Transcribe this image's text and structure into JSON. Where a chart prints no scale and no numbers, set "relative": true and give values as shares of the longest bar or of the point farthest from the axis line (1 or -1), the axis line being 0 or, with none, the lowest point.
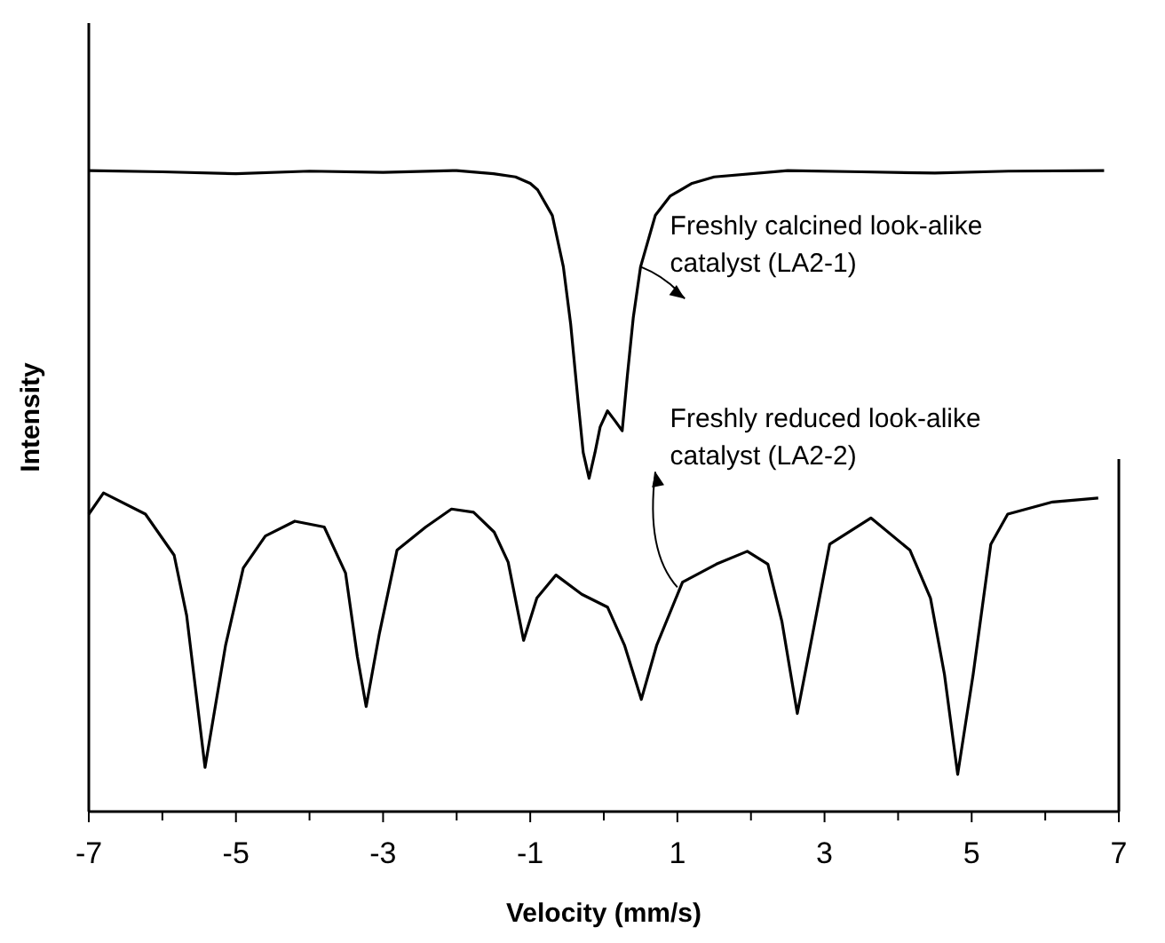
{
  "chart_data": {
    "type": "line",
    "relative": true,
    "xlabel": "Velocity (mm/s)",
    "ylabel": "Intensity",
    "xlim": [
      -7,
      7
    ],
    "xticks": [
      -7,
      -5,
      -3,
      -1,
      1,
      3,
      5,
      7
    ],
    "legend": false,
    "marker": "none",
    "line_style": "solid",
    "grid": false,
    "series": [
      {
        "name": "Freshly calcined look-alike catalyst (LA2-1)",
        "color": "#000000",
        "x": [
          -7,
          -6,
          -5,
          -4,
          -3,
          -2,
          -1.5,
          -1.2,
          -1,
          -0.9,
          -0.7,
          -0.55,
          -0.45,
          -0.35,
          -0.28,
          -0.2,
          -0.12,
          -0.05,
          0.05,
          0.15,
          0.25,
          0.32,
          0.4,
          0.5,
          0.7,
          0.9,
          1.2,
          1.5,
          2.5,
          3.5,
          4.5,
          5.5,
          6.8
        ],
        "values": [
          1,
          0.998,
          0.995,
          0.999,
          0.997,
          1,
          0.995,
          0.99,
          0.98,
          0.97,
          0.93,
          0.85,
          0.76,
          0.64,
          0.56,
          0.52,
          0.56,
          0.6,
          0.625,
          0.61,
          0.594,
          0.68,
          0.77,
          0.85,
          0.93,
          0.96,
          0.98,
          0.99,
          1,
          0.998,
          0.996,
          0.999,
          1
        ]
      },
      {
        "name": "Freshly reduced look-alike catalyst (LA2-2)",
        "color": "#000000",
        "x": [
          -7,
          -6.8,
          -6.23,
          -5.84,
          -5.67,
          -5.42,
          -5.14,
          -4.9,
          -4.6,
          -4.2,
          -3.8,
          -3.51,
          -3.35,
          -3.23,
          -3.05,
          -2.81,
          -2.42,
          -2.07,
          -1.77,
          -1.49,
          -1.3,
          -1.09,
          -0.91,
          -0.65,
          -0.3,
          0.05,
          0.28,
          0.51,
          0.72,
          1.07,
          1.53,
          1.95,
          2.23,
          2.42,
          2.63,
          2.84,
          3.07,
          3.63,
          4.16,
          4.44,
          4.63,
          4.81,
          5.02,
          5.26,
          5.49,
          6.1,
          6.72
        ],
        "values": [
          0.464,
          0.497,
          0.464,
          0.4,
          0.306,
          0.069,
          0.26,
          0.38,
          0.43,
          0.453,
          0.444,
          0.372,
          0.242,
          0.164,
          0.278,
          0.408,
          0.444,
          0.472,
          0.467,
          0.436,
          0.389,
          0.267,
          0.333,
          0.369,
          0.339,
          0.319,
          0.26,
          0.175,
          0.26,
          0.358,
          0.386,
          0.406,
          0.386,
          0.297,
          0.153,
          0.278,
          0.417,
          0.458,
          0.408,
          0.333,
          0.214,
          0.058,
          0.214,
          0.417,
          0.464,
          0.483,
          0.489
        ]
      }
    ]
  }
}
